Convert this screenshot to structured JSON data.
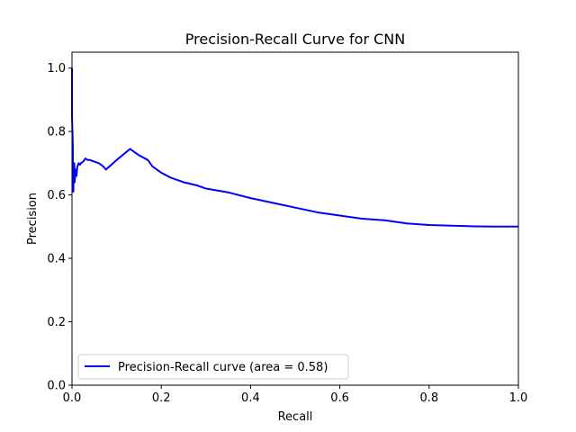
{
  "chart_data": {
    "type": "line",
    "title": "Precision-Recall Curve for CNN",
    "xlabel": "Recall",
    "ylabel": "Precision",
    "xlim": [
      0.0,
      1.0
    ],
    "ylim": [
      0.0,
      1.05
    ],
    "xticks": [
      0.0,
      0.2,
      0.4,
      0.6,
      0.8,
      1.0
    ],
    "xtick_labels": [
      "0.0",
      "0.2",
      "0.4",
      "0.6",
      "0.8",
      "1.0"
    ],
    "yticks": [
      0.0,
      0.2,
      0.4,
      0.6,
      0.8,
      1.0
    ],
    "ytick_labels": [
      "0.0",
      "0.2",
      "0.4",
      "0.6",
      "0.8",
      "1.0"
    ],
    "grid": false,
    "legend_position": "lower left",
    "series": [
      {
        "name": "Precision-Recall curve (area = 0.58)",
        "color": "#0000ff",
        "x": [
          0.0,
          0.0,
          0.001,
          0.002,
          0.002,
          0.003,
          0.004,
          0.005,
          0.006,
          0.008,
          0.01,
          0.012,
          0.015,
          0.018,
          0.02,
          0.025,
          0.03,
          0.035,
          0.04,
          0.05,
          0.06,
          0.07,
          0.076,
          0.1,
          0.13,
          0.15,
          0.17,
          0.18,
          0.2,
          0.22,
          0.25,
          0.28,
          0.3,
          0.35,
          0.4,
          0.45,
          0.5,
          0.55,
          0.6,
          0.65,
          0.7,
          0.75,
          0.8,
          0.85,
          0.9,
          0.95,
          1.0
        ],
        "y": [
          1.0,
          0.85,
          0.8,
          0.75,
          0.62,
          0.61,
          0.67,
          0.7,
          0.64,
          0.68,
          0.66,
          0.69,
          0.7,
          0.695,
          0.7,
          0.705,
          0.715,
          0.71,
          0.71,
          0.705,
          0.7,
          0.69,
          0.68,
          0.71,
          0.745,
          0.725,
          0.71,
          0.69,
          0.67,
          0.655,
          0.64,
          0.63,
          0.62,
          0.608,
          0.59,
          0.575,
          0.56,
          0.545,
          0.535,
          0.525,
          0.52,
          0.51,
          0.505,
          0.503,
          0.501,
          0.5,
          0.5
        ]
      }
    ]
  }
}
